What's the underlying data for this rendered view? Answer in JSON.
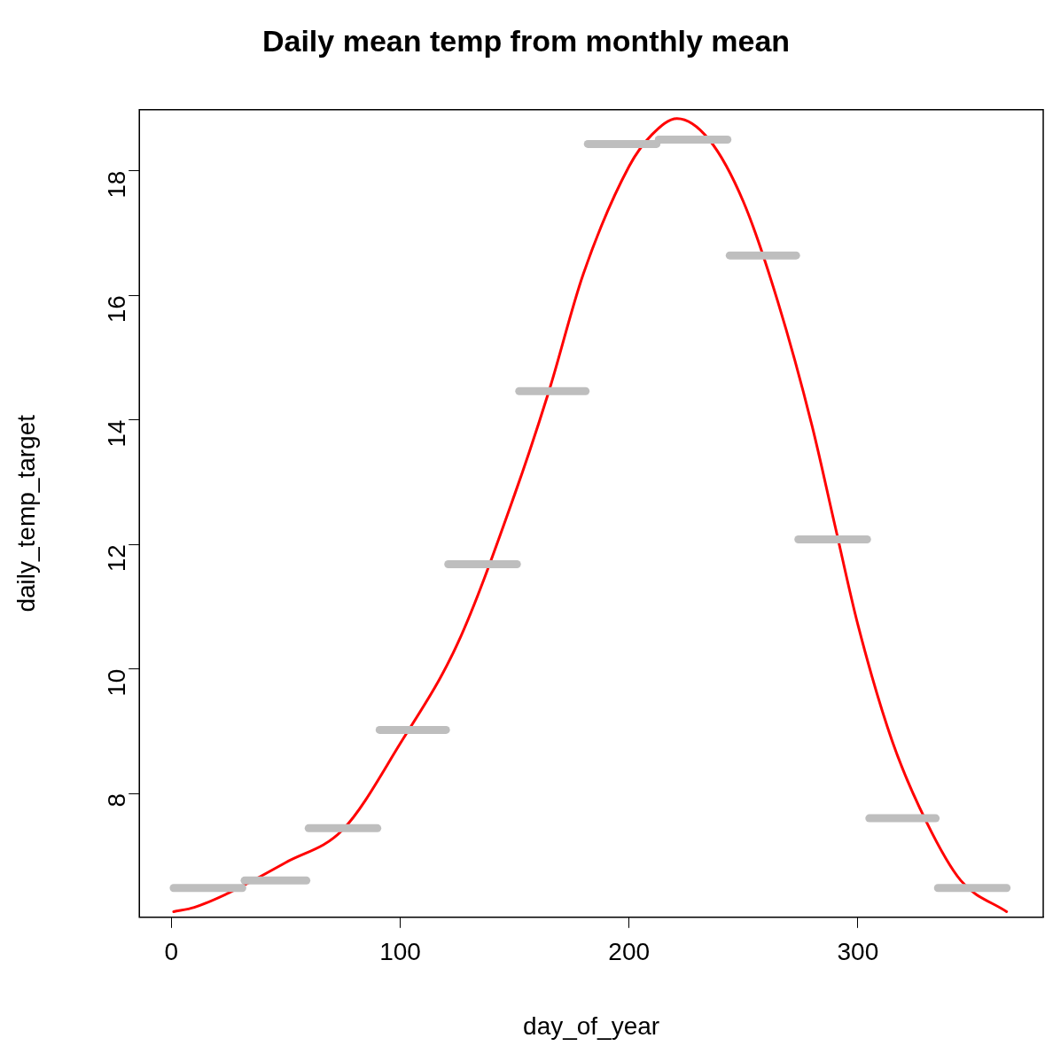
{
  "chart_data": {
    "type": "line",
    "title": "Daily mean temp from monthly mean",
    "xlabel": "day_of_year",
    "ylabel": "daily_temp_target",
    "xlim": [
      -14,
      381
    ],
    "ylim": [
      6.01,
      18.98
    ],
    "xticks": [
      0,
      100,
      200,
      300
    ],
    "yticks": [
      8,
      10,
      12,
      14,
      16,
      18
    ],
    "grid": false,
    "legend": false,
    "marker": "none",
    "line_style": "solid",
    "series": [
      {
        "color": "#bebebe",
        "x": [
          1,
          31
        ],
        "values": [
          6.48,
          6.48
        ]
      },
      {
        "color": "#bebebe",
        "x": [
          32,
          59
        ],
        "values": [
          6.6,
          6.6
        ]
      },
      {
        "color": "#bebebe",
        "x": [
          60,
          90
        ],
        "values": [
          7.44,
          7.44
        ]
      },
      {
        "color": "#bebebe",
        "x": [
          91,
          120
        ],
        "values": [
          9.02,
          9.02
        ]
      },
      {
        "color": "#bebebe",
        "x": [
          121,
          151
        ],
        "values": [
          11.68,
          11.68
        ]
      },
      {
        "color": "#bebebe",
        "x": [
          152,
          181
        ],
        "values": [
          14.46,
          14.46
        ]
      },
      {
        "color": "#bebebe",
        "x": [
          182,
          212
        ],
        "values": [
          18.43,
          18.43
        ]
      },
      {
        "color": "#bebebe",
        "x": [
          213,
          243
        ],
        "values": [
          18.5,
          18.5
        ]
      },
      {
        "color": "#bebebe",
        "x": [
          244,
          273
        ],
        "values": [
          16.64,
          16.64
        ]
      },
      {
        "color": "#bebebe",
        "x": [
          274,
          304
        ],
        "values": [
          12.08,
          12.08
        ]
      },
      {
        "color": "#bebebe",
        "x": [
          305,
          334
        ],
        "values": [
          7.6,
          7.6
        ]
      },
      {
        "color": "#bebebe",
        "x": [
          335,
          365
        ],
        "values": [
          6.48,
          6.48
        ]
      },
      {
        "color": "#ff0000",
        "x": [
          1,
          10,
          25,
          50,
          75,
          100,
          125,
          150,
          165,
          180,
          200,
          210,
          221,
          235,
          250,
          265,
          280,
          290,
          300,
          315,
          330,
          345,
          365
        ],
        "values": [
          6.1,
          6.17,
          6.4,
          6.89,
          7.42,
          8.8,
          10.4,
          12.8,
          14.46,
          16.34,
          18.07,
          18.58,
          18.84,
          18.5,
          17.5,
          15.9,
          13.9,
          12.3,
          10.71,
          8.84,
          7.54,
          6.6,
          6.1
        ]
      }
    ]
  }
}
